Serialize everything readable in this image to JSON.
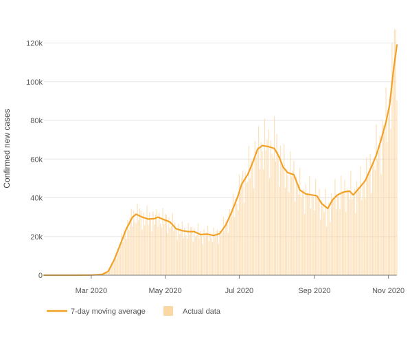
{
  "chart_data": {
    "type": "bar",
    "title": "",
    "xlabel": "",
    "ylabel": "Confirmed new cases",
    "ylim": [
      0,
      128000
    ],
    "y_ticks": [
      {
        "value": 0,
        "label": "0"
      },
      {
        "value": 20000,
        "label": "20k"
      },
      {
        "value": 40000,
        "label": "40k"
      },
      {
        "value": 60000,
        "label": "60k"
      },
      {
        "value": 80000,
        "label": "80k"
      },
      {
        "value": 100000,
        "label": "100k"
      },
      {
        "value": 120000,
        "label": "120k"
      }
    ],
    "x_range": [
      "2020-01-22",
      "2020-11-08"
    ],
    "x_ticks": [
      {
        "date": "2020-03-01",
        "label": "Mar 2020"
      },
      {
        "date": "2020-05-01",
        "label": "May 2020"
      },
      {
        "date": "2020-07-01",
        "label": "Jul 2020"
      },
      {
        "date": "2020-09-01",
        "label": "Sep 2020"
      },
      {
        "date": "2020-11-01",
        "label": "Nov 2020"
      }
    ],
    "grid": true,
    "legend_position": "bottom-left",
    "series": [
      {
        "name": "7-day moving average",
        "kind": "line",
        "color": "#f2a127",
        "points": [
          [
            "2020-01-22",
            0
          ],
          [
            "2020-02-15",
            0
          ],
          [
            "2020-03-01",
            80
          ],
          [
            "2020-03-10",
            400
          ],
          [
            "2020-03-15",
            2000
          ],
          [
            "2020-03-20",
            8000
          ],
          [
            "2020-03-25",
            16000
          ],
          [
            "2020-03-30",
            24000
          ],
          [
            "2020-04-04",
            30000
          ],
          [
            "2020-04-07",
            31500
          ],
          [
            "2020-04-12",
            30000
          ],
          [
            "2020-04-17",
            29000
          ],
          [
            "2020-04-22",
            29200
          ],
          [
            "2020-04-25",
            30000
          ],
          [
            "2020-04-30",
            28700
          ],
          [
            "2020-05-05",
            27500
          ],
          [
            "2020-05-10",
            24000
          ],
          [
            "2020-05-15",
            23000
          ],
          [
            "2020-05-20",
            22500
          ],
          [
            "2020-05-25",
            22500
          ],
          [
            "2020-05-30",
            21000
          ],
          [
            "2020-06-05",
            21200
          ],
          [
            "2020-06-10",
            20500
          ],
          [
            "2020-06-15",
            21500
          ],
          [
            "2020-06-20",
            26000
          ],
          [
            "2020-06-25",
            33000
          ],
          [
            "2020-06-30",
            41000
          ],
          [
            "2020-07-03",
            47000
          ],
          [
            "2020-07-08",
            52000
          ],
          [
            "2020-07-12",
            58000
          ],
          [
            "2020-07-16",
            65000
          ],
          [
            "2020-07-20",
            67000
          ],
          [
            "2020-07-25",
            66500
          ],
          [
            "2020-07-30",
            65500
          ],
          [
            "2020-08-03",
            61000
          ],
          [
            "2020-08-06",
            56000
          ],
          [
            "2020-08-10",
            53000
          ],
          [
            "2020-08-15",
            52000
          ],
          [
            "2020-08-20",
            44000
          ],
          [
            "2020-08-25",
            42000
          ],
          [
            "2020-08-30",
            41500
          ],
          [
            "2020-09-03",
            41000
          ],
          [
            "2020-09-07",
            37000
          ],
          [
            "2020-09-12",
            34500
          ],
          [
            "2020-09-16",
            39000
          ],
          [
            "2020-09-20",
            41500
          ],
          [
            "2020-09-25",
            43000
          ],
          [
            "2020-09-30",
            43500
          ],
          [
            "2020-10-03",
            41500
          ],
          [
            "2020-10-08",
            45000
          ],
          [
            "2020-10-13",
            49000
          ],
          [
            "2020-10-18",
            56000
          ],
          [
            "2020-10-22",
            62000
          ],
          [
            "2020-10-26",
            70000
          ],
          [
            "2020-10-30",
            79000
          ],
          [
            "2020-11-02",
            88000
          ],
          [
            "2020-11-05",
            105000
          ],
          [
            "2020-11-08",
            119000
          ]
        ]
      },
      {
        "name": "Actual data",
        "kind": "bar",
        "color": "#fbd7a4",
        "approx_daily_values_from": "7-day moving average",
        "notable_peaks": [
          [
            "2020-04-24",
            34000
          ],
          [
            "2020-07-17",
            77000
          ],
          [
            "2020-08-01",
            73000
          ],
          [
            "2020-09-11",
            25000
          ],
          [
            "2020-11-06",
            127000
          ],
          [
            "2020-11-07",
            127000
          ]
        ]
      }
    ],
    "legend": [
      {
        "label": "7-day moving average",
        "swatch": "line",
        "color": "#f2a127"
      },
      {
        "label": "Actual data",
        "swatch": "box",
        "color": "#fbd7a4"
      }
    ]
  }
}
